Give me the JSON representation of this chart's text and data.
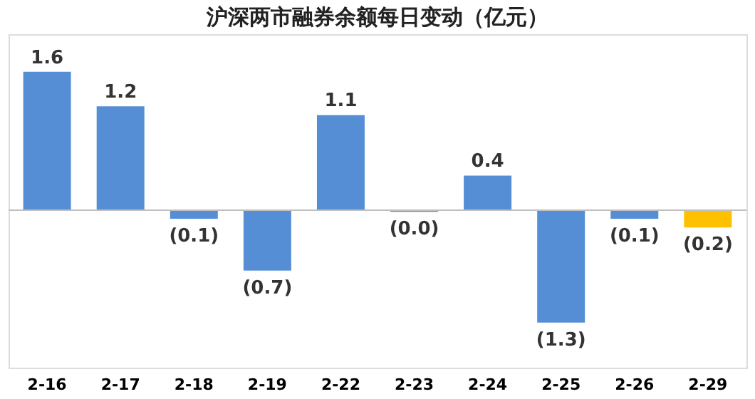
{
  "chart_data": {
    "type": "bar",
    "title": "沪深两市融券余额每日变动（亿元）",
    "categories": [
      "2-16",
      "2-17",
      "2-18",
      "2-19",
      "2-22",
      "2-23",
      "2-24",
      "2-25",
      "2-26",
      "2-29"
    ],
    "values": [
      1.6,
      1.2,
      -0.1,
      -0.7,
      1.1,
      -0.02,
      0.4,
      -1.3,
      -0.1,
      -0.2
    ],
    "colors": [
      "#558ed5",
      "#558ed5",
      "#558ed5",
      "#558ed5",
      "#558ed5",
      "#558ed5",
      "#558ed5",
      "#558ed5",
      "#558ed5",
      "#ffc000"
    ],
    "value_labels": [
      "1.6",
      "1.2",
      "(0.1)",
      "(0.7)",
      "1.1",
      "(0.0)",
      "0.4",
      "(1.3)",
      "(0.1)",
      "(0.2)"
    ],
    "grid": false
  }
}
